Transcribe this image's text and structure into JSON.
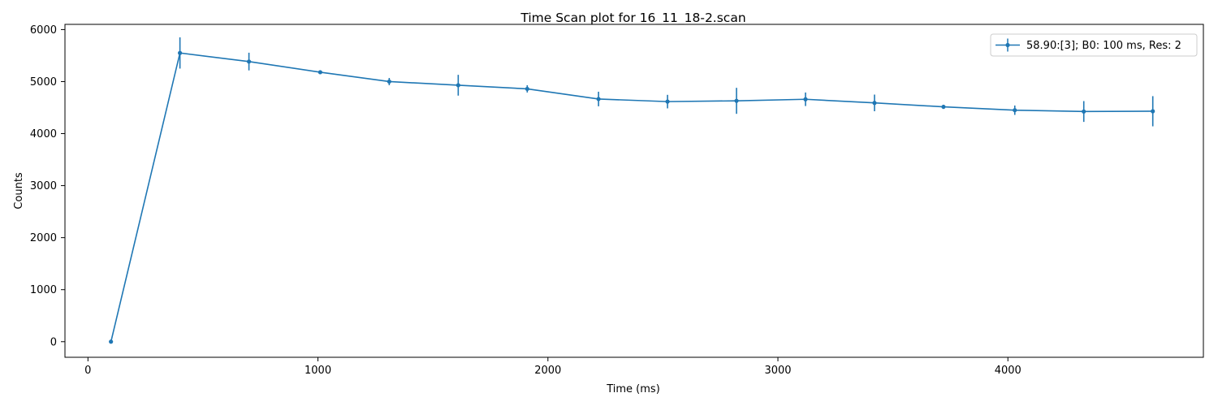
{
  "chart_data": {
    "type": "line",
    "title": "Time Scan plot for 16_11_18-2.scan",
    "xlabel": "Time (ms)",
    "ylabel": "Counts",
    "xlim": [
      -100,
      4850
    ],
    "ylim": [
      -300,
      6100
    ],
    "xticks": [
      0,
      1000,
      2000,
      3000,
      4000
    ],
    "yticks": [
      0,
      1000,
      2000,
      3000,
      4000,
      5000,
      6000
    ],
    "grid": false,
    "legend_position": "top-right",
    "color": "#1f77b4",
    "series": [
      {
        "name": "58.90:[3]; B0: 100 ms, Res: 2",
        "x": [
          100,
          400,
          700,
          1010,
          1310,
          1610,
          1910,
          2220,
          2520,
          2820,
          3120,
          3420,
          3720,
          4030,
          4330,
          4630
        ],
        "y": [
          0,
          5550,
          5385,
          5180,
          5000,
          4930,
          4860,
          4665,
          4615,
          4630,
          4660,
          4590,
          4515,
          4450,
          4425,
          4430
        ],
        "yerr": [
          0,
          300,
          170,
          30,
          70,
          200,
          70,
          140,
          130,
          250,
          130,
          160,
          40,
          90,
          200,
          290
        ]
      }
    ]
  }
}
